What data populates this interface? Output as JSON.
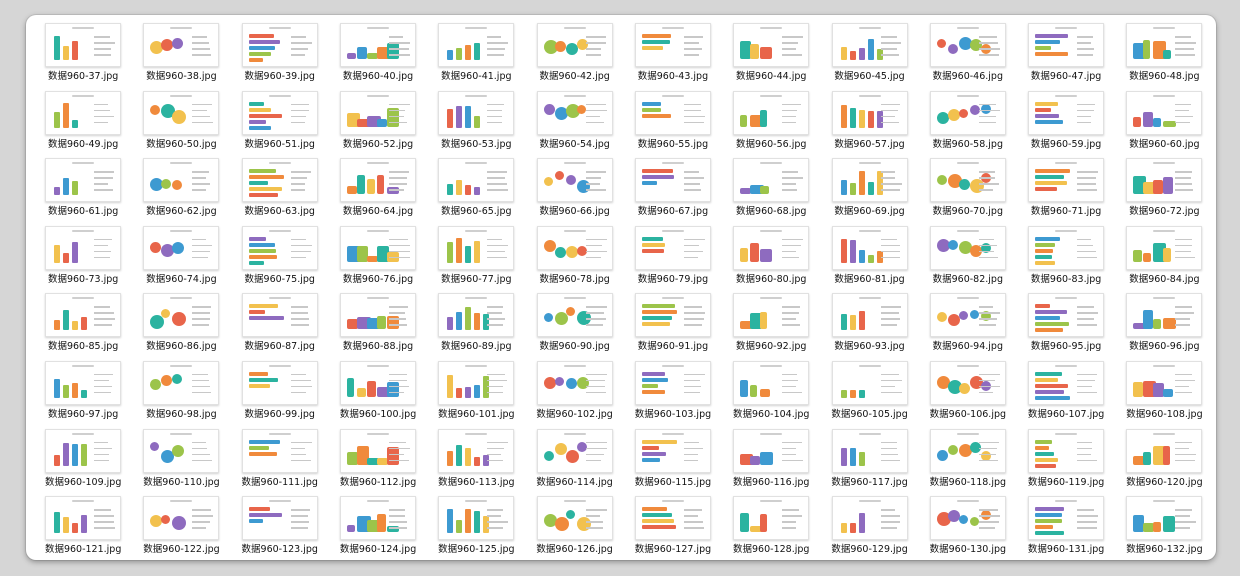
{
  "window": {
    "files": [
      "数据960-37.jpg",
      "数据960-38.jpg",
      "数据960-39.jpg",
      "数据960-40.jpg",
      "数据960-41.jpg",
      "数据960-42.jpg",
      "数据960-43.jpg",
      "数据960-44.jpg",
      "数据960-45.jpg",
      "数据960-46.jpg",
      "数据960-47.jpg",
      "数据960-48.jpg",
      "数据960-49.jpg",
      "数据960-50.jpg",
      "数据960-51.jpg",
      "数据960-52.jpg",
      "数据960-53.jpg",
      "数据960-54.jpg",
      "数据960-55.jpg",
      "数据960-56.jpg",
      "数据960-57.jpg",
      "数据960-58.jpg",
      "数据960-59.jpg",
      "数据960-60.jpg",
      "数据960-61.jpg",
      "数据960-62.jpg",
      "数据960-63.jpg",
      "数据960-64.jpg",
      "数据960-65.jpg",
      "数据960-66.jpg",
      "数据960-67.jpg",
      "数据960-68.jpg",
      "数据960-69.jpg",
      "数据960-70.jpg",
      "数据960-71.jpg",
      "数据960-72.jpg",
      "数据960-73.jpg",
      "数据960-74.jpg",
      "数据960-75.jpg",
      "数据960-76.jpg",
      "数据960-77.jpg",
      "数据960-78.jpg",
      "数据960-79.jpg",
      "数据960-80.jpg",
      "数据960-81.jpg",
      "数据960-82.jpg",
      "数据960-83.jpg",
      "数据960-84.jpg",
      "数据960-85.jpg",
      "数据960-86.jpg",
      "数据960-87.jpg",
      "数据960-88.jpg",
      "数据960-89.jpg",
      "数据960-90.jpg",
      "数据960-91.jpg",
      "数据960-92.jpg",
      "数据960-93.jpg",
      "数据960-94.jpg",
      "数据960-95.jpg",
      "数据960-96.jpg",
      "数据960-97.jpg",
      "数据960-98.jpg",
      "数据960-99.jpg",
      "数据960-100.jpg",
      "数据960-101.jpg",
      "数据960-102.jpg",
      "数据960-103.jpg",
      "数据960-104.jpg",
      "数据960-105.jpg",
      "数据960-106.jpg",
      "数据960-107.jpg",
      "数据960-108.jpg",
      "数据960-109.jpg",
      "数据960-110.jpg",
      "数据960-111.jpg",
      "数据960-112.jpg",
      "数据960-113.jpg",
      "数据960-114.jpg",
      "数据960-115.jpg",
      "数据960-116.jpg",
      "数据960-117.jpg",
      "数据960-118.jpg",
      "数据960-119.jpg",
      "数据960-120.jpg",
      "数据960-121.jpg",
      "数据960-122.jpg",
      "数据960-123.jpg",
      "数据960-124.jpg",
      "数据960-125.jpg",
      "数据960-126.jpg",
      "数据960-127.jpg",
      "数据960-128.jpg",
      "数据960-129.jpg",
      "数据960-130.jpg",
      "数据960-131.jpg",
      "数据960-132.jpg"
    ]
  },
  "palette": [
    "#2bb3a0",
    "#f2c14e",
    "#e8654a",
    "#8e6bbf",
    "#3d9ad1",
    "#9cc44a",
    "#f08a3c"
  ]
}
